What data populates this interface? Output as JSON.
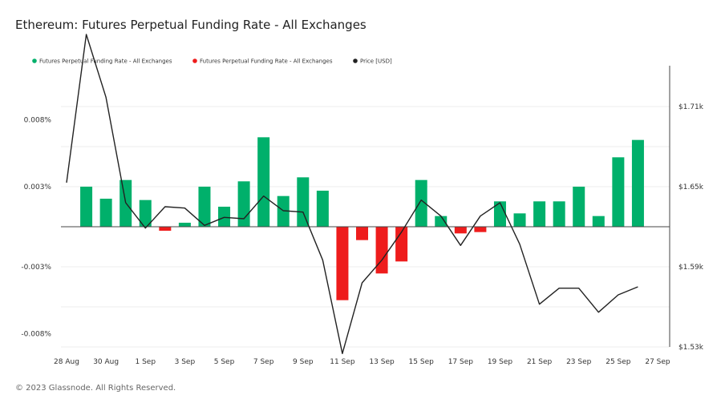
{
  "title": "Ethereum: Futures Perpetual Funding Rate - All Exchanges",
  "footer": "© 2023 Glassnode. All Rights Reserved.",
  "colors": {
    "positive": "#00b06b",
    "negative": "#ee1c1c",
    "price": "#222222",
    "grid": "#eeeeee",
    "zero": "#444444"
  },
  "chart_data": {
    "type": "bar",
    "legend_position": "top-left",
    "legend": [
      {
        "name": "Futures Perpetual Funding Rate - All Exchanges",
        "color": "#00b06b"
      },
      {
        "name": "Futures Perpetual Funding Rate - All Exchanges",
        "color": "#ee1c1c"
      },
      {
        "name": "Price [USD]",
        "color": "#222222"
      }
    ],
    "x_ticks": [
      "28 Aug",
      "30 Aug",
      "1 Sep",
      "3 Sep",
      "5 Sep",
      "7 Sep",
      "9 Sep",
      "11 Sep",
      "13 Sep",
      "15 Sep",
      "17 Sep",
      "19 Sep",
      "21 Sep",
      "23 Sep",
      "25 Sep",
      "27 Sep"
    ],
    "y_left": {
      "ticks": [
        -0.008,
        -0.003,
        0.003,
        0.008
      ],
      "labels": [
        "-0.008%",
        "-0.003%",
        "0.003%",
        "0.008%"
      ]
    },
    "y_right": {
      "ticks": [
        1.53,
        1.59,
        1.65,
        1.71
      ],
      "labels": [
        "$1.53k",
        "$1.59k",
        "$1.65k",
        "$1.71k"
      ]
    },
    "categories": [
      "28 Aug",
      "29 Aug",
      "30 Aug",
      "31 Aug",
      "1 Sep",
      "2 Sep",
      "3 Sep",
      "4 Sep",
      "5 Sep",
      "6 Sep",
      "7 Sep",
      "8 Sep",
      "9 Sep",
      "10 Sep",
      "11 Sep",
      "12 Sep",
      "13 Sep",
      "14 Sep",
      "15 Sep",
      "16 Sep",
      "17 Sep",
      "18 Sep",
      "19 Sep",
      "20 Sep",
      "21 Sep",
      "22 Sep",
      "23 Sep",
      "24 Sep",
      "25 Sep",
      "26 Sep",
      "27 Sep"
    ],
    "funding_rate_pct": [
      null,
      0.003,
      0.0021,
      0.0035,
      0.002,
      -0.0003,
      0.0003,
      0.003,
      0.0015,
      0.0034,
      0.0067,
      0.0023,
      0.0037,
      0.0027,
      -0.0055,
      -0.001,
      -0.0035,
      -0.0026,
      0.0035,
      0.0008,
      -0.0005,
      -0.0004,
      0.0019,
      0.001,
      0.0019,
      0.0019,
      0.003,
      0.0008,
      0.0052,
      0.0065,
      null
    ],
    "price_usd_k": [
      1.653,
      1.764,
      1.717,
      1.638,
      1.619,
      1.635,
      1.634,
      1.621,
      1.627,
      1.626,
      1.643,
      1.632,
      1.631,
      1.595,
      1.525,
      1.578,
      1.595,
      1.616,
      1.64,
      1.628,
      1.606,
      1.628,
      1.638,
      1.607,
      1.562,
      1.574,
      1.574,
      1.556,
      1.569,
      1.575,
      null
    ]
  }
}
